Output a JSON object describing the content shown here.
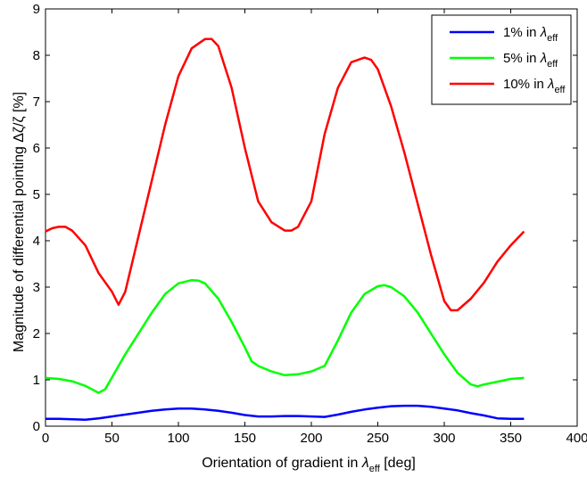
{
  "chart_data": {
    "type": "line",
    "title": "",
    "xlabel": "Orientation of gradient in ",
    "xlabel_symbol": "λ",
    "xlabel_subscript": "eff",
    "xlabel_suffix": " [deg]",
    "ylabel": "Magnitude of differential pointing  Δζ/ζ [%]",
    "xlim": [
      0,
      400
    ],
    "ylim": [
      0,
      9
    ],
    "xticks": [
      0,
      50,
      100,
      150,
      200,
      250,
      300,
      350,
      400
    ],
    "yticks": [
      0,
      1,
      2,
      3,
      4,
      5,
      6,
      7,
      8,
      9
    ],
    "grid": false,
    "legend_position": "top-right",
    "series": [
      {
        "name": "1% in ",
        "name_symbol": "λ",
        "name_subscript": "eff",
        "color": "#0000ff",
        "x": [
          0,
          10,
          20,
          30,
          40,
          50,
          60,
          70,
          80,
          90,
          100,
          110,
          120,
          130,
          140,
          150,
          160,
          170,
          180,
          190,
          200,
          210,
          220,
          230,
          240,
          250,
          260,
          270,
          280,
          290,
          300,
          310,
          320,
          330,
          340,
          350,
          360
        ],
        "y": [
          0.16,
          0.16,
          0.15,
          0.14,
          0.17,
          0.21,
          0.25,
          0.29,
          0.33,
          0.36,
          0.38,
          0.38,
          0.36,
          0.33,
          0.29,
          0.24,
          0.21,
          0.21,
          0.22,
          0.22,
          0.21,
          0.2,
          0.25,
          0.31,
          0.36,
          0.4,
          0.43,
          0.44,
          0.44,
          0.42,
          0.38,
          0.34,
          0.28,
          0.23,
          0.17,
          0.16,
          0.16
        ]
      },
      {
        "name": "5% in ",
        "name_symbol": "λ",
        "name_subscript": "eff",
        "color": "#00ff00",
        "x": [
          0,
          10,
          20,
          30,
          40,
          45,
          50,
          60,
          70,
          80,
          90,
          100,
          110,
          115,
          120,
          130,
          140,
          150,
          155,
          160,
          170,
          180,
          190,
          200,
          210,
          220,
          230,
          240,
          250,
          255,
          260,
          270,
          280,
          290,
          300,
          310,
          320,
          325,
          330,
          340,
          350,
          360
        ],
        "y": [
          1.04,
          1.02,
          0.97,
          0.87,
          0.72,
          0.8,
          1.05,
          1.55,
          2.0,
          2.45,
          2.85,
          3.08,
          3.15,
          3.14,
          3.08,
          2.75,
          2.25,
          1.7,
          1.4,
          1.3,
          1.18,
          1.1,
          1.12,
          1.18,
          1.3,
          1.85,
          2.45,
          2.85,
          3.02,
          3.04,
          3.0,
          2.8,
          2.45,
          2.0,
          1.55,
          1.15,
          0.9,
          0.86,
          0.9,
          0.96,
          1.02,
          1.04
        ]
      },
      {
        "name": "10% in ",
        "name_symbol": "λ",
        "name_subscript": "eff",
        "color": "#ff0000",
        "x": [
          0,
          5,
          10,
          15,
          20,
          30,
          40,
          50,
          55,
          60,
          70,
          80,
          90,
          100,
          110,
          120,
          125,
          130,
          140,
          150,
          160,
          170,
          180,
          185,
          190,
          200,
          210,
          220,
          230,
          240,
          245,
          250,
          260,
          270,
          280,
          290,
          300,
          305,
          310,
          320,
          330,
          340,
          350,
          360
        ],
        "y": [
          4.2,
          4.27,
          4.3,
          4.3,
          4.22,
          3.9,
          3.3,
          2.9,
          2.62,
          2.9,
          4.1,
          5.3,
          6.5,
          7.55,
          8.15,
          8.35,
          8.35,
          8.2,
          7.3,
          6.0,
          4.85,
          4.4,
          4.22,
          4.22,
          4.3,
          4.85,
          6.3,
          7.3,
          7.85,
          7.95,
          7.9,
          7.7,
          6.9,
          5.9,
          4.8,
          3.7,
          2.7,
          2.5,
          2.5,
          2.75,
          3.1,
          3.55,
          3.9,
          4.2
        ]
      }
    ]
  }
}
